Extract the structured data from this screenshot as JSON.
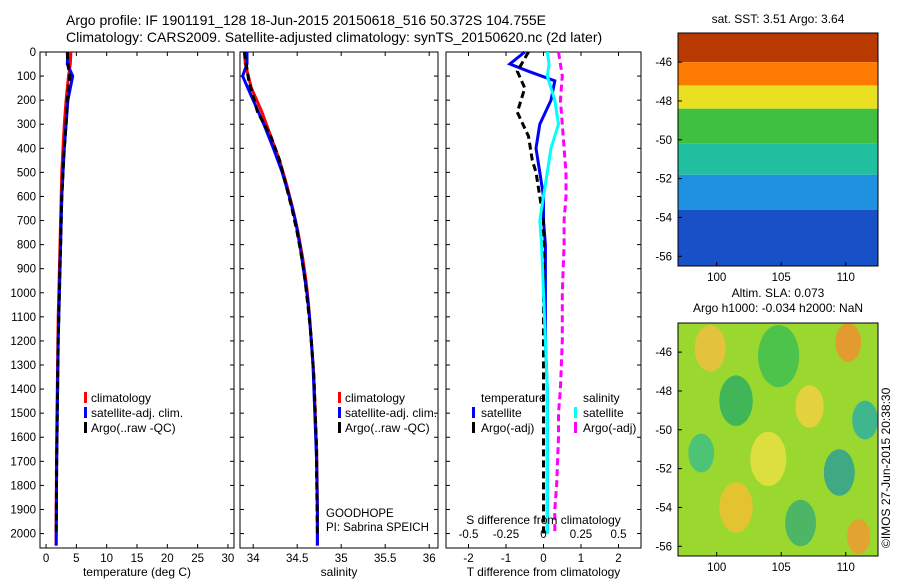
{
  "header": {
    "line1": "Argo profile: IF 1901191_128 18-Jun-2015 20150618_516 50.372S 104.755E",
    "line2": "Climatology: CARS2009. Satellite-adjusted climatology: synTS_20150620.nc (2d later)"
  },
  "colors": {
    "climatology": "#ff0000",
    "satellite": "#0000ff",
    "argo": "#000000",
    "sat_salinity": "#00ffff",
    "argo_salinity": "#ff00ff"
  },
  "depth_axis": {
    "ticks": [
      0,
      100,
      200,
      300,
      400,
      500,
      600,
      700,
      800,
      900,
      1000,
      1100,
      1200,
      1300,
      1400,
      1500,
      1600,
      1700,
      1800,
      1900,
      2000
    ],
    "range": [
      0,
      2060
    ]
  },
  "chart_data": [
    {
      "type": "line",
      "id": "temperature",
      "xlabel": "temperature (deg C)",
      "xlim": [
        -1,
        31
      ],
      "xticks": [
        0,
        5,
        10,
        15,
        20,
        25,
        30
      ],
      "xtick_labels": [
        "0",
        "5",
        "10",
        "15",
        "20",
        "25",
        "30"
      ],
      "legend": [
        "climatology",
        "satellite-adj. clim.",
        "Argo(..raw -QC)"
      ],
      "series": [
        {
          "name": "climatology",
          "style": "solid",
          "x": [
            4.1,
            4.0,
            3.7,
            3.3,
            3.0,
            2.8,
            2.6,
            2.5,
            2.4,
            2.3,
            2.2,
            2.1,
            2.0,
            1.95,
            1.9,
            1.85,
            1.8,
            1.75,
            1.72,
            1.7,
            1.68,
            1.66
          ],
          "y": [
            0,
            50,
            100,
            200,
            300,
            400,
            500,
            600,
            700,
            800,
            900,
            1000,
            1100,
            1200,
            1300,
            1400,
            1500,
            1600,
            1700,
            1800,
            1900,
            2050
          ]
        },
        {
          "name": "satellite-adj. clim.",
          "style": "solid",
          "x": [
            3.6,
            3.5,
            4.4,
            3.6,
            3.3,
            3.0,
            2.8,
            2.6,
            2.5,
            2.4,
            2.3,
            2.2,
            2.1,
            2.0,
            1.95,
            1.9,
            1.85,
            1.8,
            1.75,
            1.72,
            1.7,
            1.68
          ],
          "y": [
            0,
            50,
            100,
            200,
            300,
            400,
            500,
            600,
            700,
            800,
            900,
            1000,
            1100,
            1200,
            1300,
            1400,
            1500,
            1600,
            1700,
            1800,
            1900,
            2050
          ]
        },
        {
          "name": "Argo(..raw -QC)",
          "style": "dashed",
          "x": [
            3.5,
            3.6,
            3.9,
            3.5,
            3.3,
            3.0,
            2.8,
            2.6,
            2.5,
            2.4,
            2.3,
            2.2,
            2.1,
            2.0,
            1.95,
            1.9,
            1.85,
            1.8,
            1.75,
            1.72,
            1.7,
            1.68
          ],
          "y": [
            0,
            50,
            100,
            200,
            300,
            400,
            500,
            600,
            700,
            800,
            900,
            1000,
            1100,
            1200,
            1300,
            1400,
            1500,
            1600,
            1700,
            1800,
            1900,
            2000
          ]
        }
      ]
    },
    {
      "type": "line",
      "id": "salinity",
      "xlabel": "salinity",
      "xlim": [
        33.85,
        36.1
      ],
      "xticks": [
        34,
        34.5,
        35,
        35.5,
        36
      ],
      "xtick_labels": [
        "34",
        "34.5",
        "35",
        "35.5",
        "36"
      ],
      "legend": [
        "climatology",
        "satellite-adj. clim.",
        "Argo(..raw -QC)"
      ],
      "annotations": [
        "GOODHOPE",
        "PI: Sabrina SPEICH"
      ],
      "series": [
        {
          "name": "climatology",
          "style": "solid",
          "x": [
            33.9,
            33.91,
            33.98,
            34.1,
            34.2,
            34.3,
            34.38,
            34.45,
            34.51,
            34.56,
            34.6,
            34.63,
            34.65,
            34.67,
            34.69,
            34.7,
            34.71,
            34.72,
            34.725,
            34.73,
            34.73
          ],
          "y": [
            0,
            50,
            150,
            250,
            350,
            450,
            550,
            650,
            750,
            850,
            950,
            1050,
            1150,
            1250,
            1350,
            1450,
            1550,
            1650,
            1750,
            1900,
            2050
          ]
        },
        {
          "name": "satellite-adj. clim.",
          "style": "solid",
          "x": [
            33.93,
            33.93,
            33.88,
            34.0,
            34.12,
            34.23,
            34.33,
            34.41,
            34.48,
            34.53,
            34.57,
            34.61,
            34.64,
            34.66,
            34.68,
            34.69,
            34.7,
            34.71,
            34.72,
            34.73,
            34.73
          ],
          "y": [
            0,
            50,
            100,
            200,
            300,
            400,
            500,
            600,
            700,
            800,
            900,
            1000,
            1100,
            1200,
            1300,
            1400,
            1500,
            1600,
            1700,
            1900,
            2050
          ]
        },
        {
          "name": "Argo(..raw -QC)",
          "style": "dashed",
          "x": [
            33.9,
            33.95,
            34.05,
            34.2,
            34.3,
            34.37,
            34.44,
            34.5,
            34.55,
            34.59,
            34.62,
            34.65,
            34.67,
            34.69,
            34.7,
            34.71,
            34.72,
            34.72,
            34.73
          ],
          "y": [
            0,
            120,
            250,
            350,
            450,
            550,
            650,
            750,
            850,
            950,
            1050,
            1150,
            1250,
            1350,
            1450,
            1550,
            1650,
            1750,
            2000
          ]
        }
      ]
    },
    {
      "type": "line",
      "id": "difference",
      "xlabel": "T difference from climatology",
      "xlabel_top": "S difference from climatology",
      "xlim": [
        -2.6,
        2.6
      ],
      "xticks": [
        -2,
        -1,
        0,
        1,
        2
      ],
      "xtick_labels": [
        "-2",
        "-1",
        "0",
        "1",
        "2"
      ],
      "top_xticks": [
        -2.0,
        -1.0,
        0,
        1.0,
        2.0
      ],
      "top_xtick_labels": [
        "-0.5",
        "-0.25",
        "0",
        "0.25",
        "0.5"
      ],
      "legend": {
        "temperature_title": "temperature",
        "salinity_title": "salinity",
        "temperature": [
          "satellite",
          "Argo(-adj)"
        ],
        "salinity": [
          "satellite",
          "Argo(-adj)"
        ]
      },
      "series": [
        {
          "name": "T satellite",
          "style": "solid",
          "color_key": "satellite",
          "x": [
            -0.5,
            -0.9,
            -0.4,
            0.3,
            0.2,
            -0.1,
            -0.2,
            -0.1,
            0.0,
            0.0,
            0.05,
            0.05,
            0.05,
            0.05,
            0.1,
            0.1,
            0.1,
            0.1,
            0.1
          ],
          "y": [
            0,
            50,
            80,
            120,
            200,
            300,
            400,
            500,
            600,
            700,
            800,
            900,
            1000,
            1200,
            1400,
            1600,
            1800,
            1900,
            2000
          ]
        },
        {
          "name": "T Argo(-adj)",
          "style": "dashed",
          "color_key": "argo",
          "x": [
            -0.4,
            -0.7,
            -0.5,
            -0.7,
            -0.4,
            -0.3,
            -0.2,
            -0.1,
            0.0,
            0.0,
            0.0,
            0.0,
            0.0,
            0.0,
            0.0,
            0.0
          ],
          "y": [
            0,
            80,
            150,
            250,
            350,
            450,
            500,
            600,
            700,
            900,
            1100,
            1300,
            1500,
            1700,
            1900,
            2000
          ]
        },
        {
          "name": "S satellite",
          "style": "solid",
          "color_key": "sat_salinity",
          "x": [
            0.1,
            0.15,
            0.1,
            0.3,
            0.4,
            0.2,
            0.1,
            0.0,
            -0.1,
            -0.05,
            0.0,
            0.05,
            0.1,
            0.1,
            0.1,
            0.1,
            0.1
          ],
          "y": [
            0,
            50,
            100,
            200,
            300,
            400,
            500,
            600,
            700,
            800,
            1000,
            1200,
            1400,
            1600,
            1800,
            1900,
            2000
          ]
        },
        {
          "name": "S Argo(-adj)",
          "style": "dashed",
          "color_key": "argo_salinity",
          "x": [
            0.4,
            0.5,
            0.45,
            0.5,
            0.55,
            0.6,
            0.6,
            0.55,
            0.55,
            0.5,
            0.5,
            0.45,
            0.4,
            0.4,
            0.35,
            0.3,
            0.3
          ],
          "y": [
            0,
            100,
            200,
            300,
            400,
            500,
            600,
            700,
            800,
            1000,
            1200,
            1400,
            1500,
            1600,
            1800,
            1900,
            2000
          ]
        }
      ]
    },
    {
      "type": "heatmap",
      "id": "sst_map",
      "title": "sat. SST: 3.51 Argo: 3.64",
      "xlim": [
        97,
        112.5
      ],
      "ylim": [
        -56.5,
        -44.5
      ],
      "xticks": [
        100,
        105,
        110
      ],
      "yticks": [
        -46,
        -48,
        -50,
        -52,
        -54,
        -56
      ],
      "xtick_labels": [
        "100",
        "105",
        "110"
      ],
      "ytick_labels": [
        "-46",
        "-48",
        "-50",
        "-52",
        "-54",
        "-56"
      ],
      "bands": [
        {
          "lat_top": -44.5,
          "lat_bottom": -46.0,
          "color": "#b83a00"
        },
        {
          "lat_top": -46.0,
          "lat_bottom": -47.2,
          "color": "#ff7a00"
        },
        {
          "lat_top": -47.2,
          "lat_bottom": -48.4,
          "color": "#e8e020"
        },
        {
          "lat_top": -48.4,
          "lat_bottom": -50.2,
          "color": "#40c040"
        },
        {
          "lat_top": -50.2,
          "lat_bottom": -51.8,
          "color": "#20c0a0"
        },
        {
          "lat_top": -51.8,
          "lat_bottom": -53.6,
          "color": "#2090e0"
        },
        {
          "lat_top": -53.6,
          "lat_bottom": -56.5,
          "color": "#1850c8"
        }
      ],
      "marker": {
        "lon": 104.755,
        "lat": -50.372
      }
    },
    {
      "type": "heatmap",
      "id": "sla_map",
      "title_line1": "Altim. SLA: 0.073",
      "title_line2": "Argo h1000: -0.034 h2000: NaN",
      "xlim": [
        97,
        112.5
      ],
      "ylim": [
        -56.5,
        -44.5
      ],
      "xticks": [
        100,
        105,
        110
      ],
      "yticks": [
        -46,
        -48,
        -50,
        -52,
        -54,
        -56
      ],
      "xtick_labels": [
        "100",
        "105",
        "110"
      ],
      "ytick_labels": [
        "-46",
        "-48",
        "-50",
        "-52",
        "-54",
        "-56"
      ],
      "base_color": "#9ad830",
      "blobs": [
        {
          "lon": 99.5,
          "lat": -45.8,
          "r": 1.2,
          "color": "#f0c040"
        },
        {
          "lon": 104.8,
          "lat": -46.2,
          "r": 1.6,
          "color": "#40c050"
        },
        {
          "lon": 110.2,
          "lat": -45.5,
          "r": 1.0,
          "color": "#f09030"
        },
        {
          "lon": 101.5,
          "lat": -48.5,
          "r": 1.3,
          "color": "#30b060"
        },
        {
          "lon": 107.2,
          "lat": -48.8,
          "r": 1.1,
          "color": "#f0d040"
        },
        {
          "lon": 111.5,
          "lat": -49.5,
          "r": 1.0,
          "color": "#30b0a0"
        },
        {
          "lon": 98.8,
          "lat": -51.2,
          "r": 1.0,
          "color": "#40c080"
        },
        {
          "lon": 104.0,
          "lat": -51.5,
          "r": 1.4,
          "color": "#e8e040"
        },
        {
          "lon": 109.5,
          "lat": -52.2,
          "r": 1.2,
          "color": "#30a090"
        },
        {
          "lon": 101.5,
          "lat": -54.0,
          "r": 1.3,
          "color": "#f0c030"
        },
        {
          "lon": 106.5,
          "lat": -54.8,
          "r": 1.2,
          "color": "#40b070"
        },
        {
          "lon": 111.0,
          "lat": -55.5,
          "r": 0.9,
          "color": "#f09a30"
        }
      ],
      "marker": {
        "lon": 104.755,
        "lat": -50.372
      }
    }
  ],
  "watermark": "©IMOS 27-Jun-2015 20:38:30"
}
